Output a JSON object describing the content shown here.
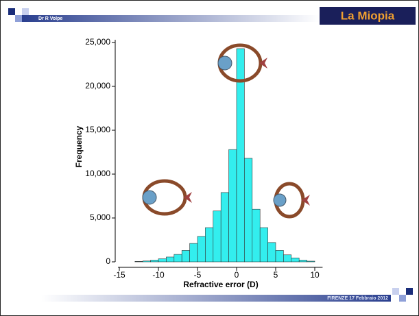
{
  "slide": {
    "author": "Dr R Volpe",
    "title": "La Miopia",
    "footer": "FIRENZE 17 Febbraio 2012"
  },
  "chart_data": {
    "type": "histogram",
    "xlabel": "Refractive error (D)",
    "ylabel": "Frequency",
    "bins": [
      -13,
      -12,
      -11,
      -10,
      -9,
      -8,
      -7,
      -6,
      -5,
      -4,
      -3,
      -2,
      -1,
      0,
      1,
      2,
      3,
      4,
      5,
      6,
      7,
      8,
      9,
      10
    ],
    "values": [
      50,
      100,
      200,
      350,
      550,
      850,
      1300,
      2100,
      2900,
      3900,
      5800,
      7900,
      12800,
      24300,
      11800,
      6000,
      3900,
      2200,
      1300,
      800,
      450,
      200,
      80
    ],
    "color": "#33eeee",
    "xlim": [
      -15,
      11
    ],
    "xticks": [
      -15,
      -10,
      -5,
      0,
      5,
      10
    ],
    "ylim": [
      0,
      25000
    ],
    "yticks": [
      0,
      {
        "value": 5000,
        "label": "5,000"
      },
      {
        "value": 10000,
        "label": "10,000"
      },
      {
        "value": 15000,
        "label": "15,000"
      },
      {
        "value": 20000,
        "label": "20,000"
      },
      {
        "value": 25000,
        "label": "25,000"
      }
    ],
    "grid": false
  }
}
